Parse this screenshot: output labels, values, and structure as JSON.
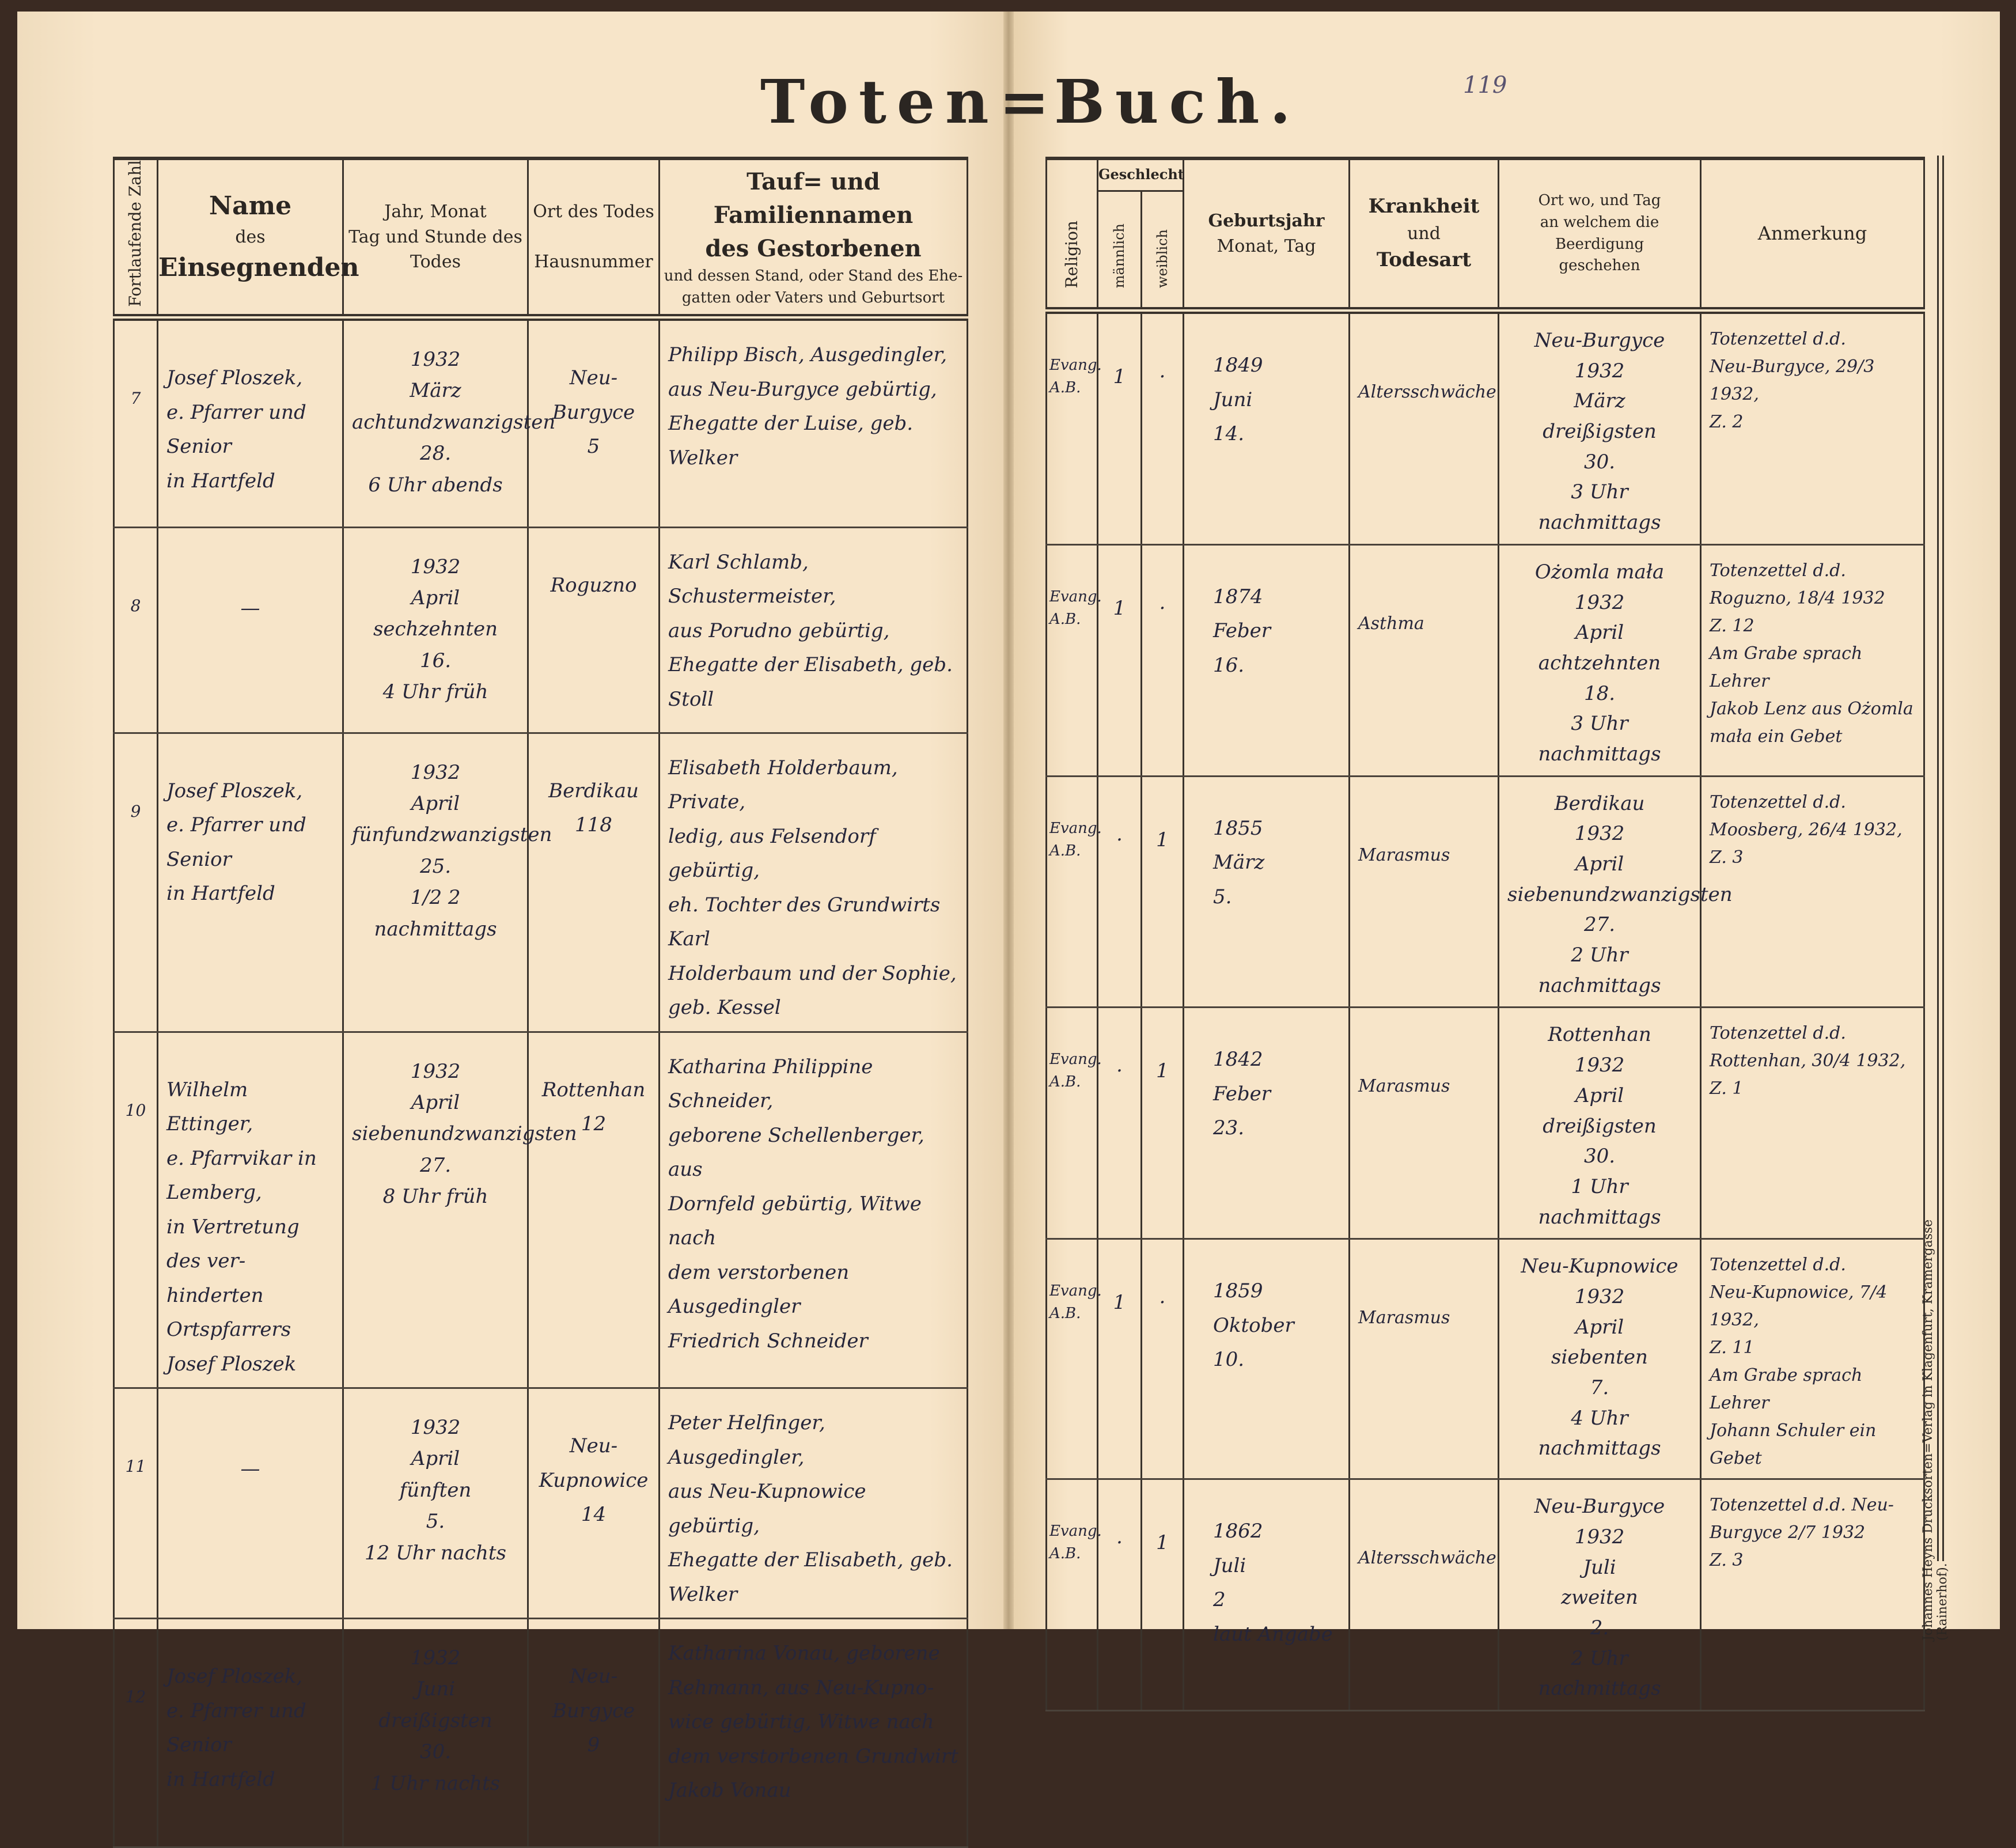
{
  "title_left": "Toten=",
  "title_right": "Buch.",
  "page_number": "119",
  "printer_imprint": "Johannes Heyns Drucksorten=Verlag in Klagenfurt, Kramergasse (Rainerhof).",
  "left_headers": {
    "nr": "Fortlaufende Zahl",
    "officiant": [
      "Name",
      "des",
      "Einsegnenden"
    ],
    "date": [
      "Jahr, Monat",
      "Tag und Stunde des",
      "Todes"
    ],
    "place": [
      "Ort des Todes",
      "Hausnummer"
    ],
    "deceased": [
      "Tauf= und Familiennamen",
      "des Gestorbenen",
      "und dessen Stand, oder Stand des Ehe-",
      "gatten oder Vaters und Geburtsort"
    ]
  },
  "right_headers": {
    "religion": "Religion",
    "sex": "Geschlecht",
    "male": "männlich",
    "female": "weiblich",
    "birth": [
      "Geburtsjahr",
      "Monat, Tag"
    ],
    "disease": [
      "Krankheit",
      "und",
      "Todesart"
    ],
    "burial": [
      "Ort wo, und Tag",
      "an welchem die Beerdigung",
      "geschehen"
    ],
    "remark": "Anmerkung"
  },
  "entries": [
    {
      "nr": "7",
      "officiant": [
        "Josef Ploszek,",
        "e. Pfarrer und Senior",
        "in Hartfeld"
      ],
      "date": [
        "1932",
        "März",
        "achtundzwanzigsten",
        "28.",
        "6 Uhr abends"
      ],
      "place": [
        "Neu-",
        "Burgyce",
        "5"
      ],
      "deceased": [
        "Philipp Bisch, Ausgedingler,",
        "aus Neu-Burgyce gebürtig,",
        "Ehegatte der Luise, geb. Welker"
      ],
      "religion": [
        "Evang.",
        "A.B."
      ],
      "male": "1",
      "female": "·",
      "birth": [
        "1849",
        "Juni",
        "14."
      ],
      "disease": [
        "Altersschwäche"
      ],
      "burial": [
        "Neu-Burgyce",
        "1932",
        "März",
        "dreißigsten",
        "30.",
        "3 Uhr nachmittags"
      ],
      "remark": [
        "Totenzettel d.d.",
        "Neu-Burgyce, 29/3 1932,",
        "Z. 2"
      ]
    },
    {
      "nr": "8",
      "officiant": [
        "—"
      ],
      "date": [
        "1932",
        "April",
        "sechzehnten",
        "16.",
        "4 Uhr früh"
      ],
      "place": [
        "Roguzno"
      ],
      "deceased": [
        "Karl Schlamb, Schustermeister,",
        "aus Porudno gebürtig,",
        "Ehegatte der Elisabeth, geb. Stoll"
      ],
      "religion": [
        "Evang.",
        "A.B."
      ],
      "male": "1",
      "female": "·",
      "birth": [
        "1874",
        "Feber",
        "16."
      ],
      "disease": [
        "Asthma"
      ],
      "burial": [
        "Ożomla mała",
        "1932",
        "April",
        "achtzehnten",
        "18.",
        "3 Uhr nachmittags"
      ],
      "remark": [
        "Totenzettel d.d.",
        "Roguzno, 18/4 1932",
        "Z. 12",
        "Am Grabe sprach Lehrer",
        "Jakob Lenz aus Ożomla",
        "mała ein Gebet"
      ]
    },
    {
      "nr": "9",
      "officiant": [
        "Josef Ploszek,",
        "e. Pfarrer und Senior",
        "in Hartfeld"
      ],
      "date": [
        "1932",
        "April",
        "fünfundzwanzigsten",
        "25.",
        "1/2 2 nachmittags"
      ],
      "place": [
        "Berdikau",
        "118"
      ],
      "deceased": [
        "Elisabeth Holderbaum, Private,",
        "ledig, aus Felsendorf gebürtig,",
        "eh. Tochter des Grundwirts Karl",
        "Holderbaum und der Sophie,",
        "geb. Kessel"
      ],
      "religion": [
        "Evang.",
        "A.B."
      ],
      "male": "·",
      "female": "1",
      "birth": [
        "1855",
        "März",
        "5."
      ],
      "disease": [
        "Marasmus"
      ],
      "burial": [
        "Berdikau",
        "1932",
        "April",
        "siebenundzwanzigsten",
        "27.",
        "2 Uhr nachmittags"
      ],
      "remark": [
        "Totenzettel d.d.",
        "Moosberg, 26/4 1932,",
        "Z. 3"
      ]
    },
    {
      "nr": "10",
      "officiant": [
        "Wilhelm Ettinger,",
        "e. Pfarrvikar in Lemberg,",
        "in Vertretung des ver-",
        "hinderten Ortspfarrers",
        "Josef Ploszek"
      ],
      "date": [
        "1932",
        "April",
        "siebenundzwanzigsten",
        "27.",
        "8 Uhr früh"
      ],
      "place": [
        "Rottenhan",
        "12"
      ],
      "deceased": [
        "Katharina Philippine Schneider,",
        "geborene Schellenberger, aus",
        "Dornfeld gebürtig, Witwe nach",
        "dem verstorbenen Ausgedingler",
        "Friedrich Schneider"
      ],
      "religion": [
        "Evang.",
        "A.B."
      ],
      "male": "·",
      "female": "1",
      "birth": [
        "1842",
        "Feber",
        "23."
      ],
      "disease": [
        "Marasmus"
      ],
      "burial": [
        "Rottenhan",
        "1932",
        "April",
        "dreißigsten",
        "30.",
        "1 Uhr nachmittags"
      ],
      "remark": [
        "Totenzettel d.d.",
        "Rottenhan, 30/4 1932,",
        "Z. 1"
      ]
    },
    {
      "nr": "11",
      "officiant": [
        "—"
      ],
      "date": [
        "1932",
        "April",
        "fünften",
        "5.",
        "12 Uhr nachts"
      ],
      "place": [
        "Neu-",
        "Kupnowice",
        "14"
      ],
      "deceased": [
        "Peter Helfinger, Ausgedingler,",
        "aus Neu-Kupnowice gebürtig,",
        "Ehegatte der Elisabeth, geb.",
        "Welker"
      ],
      "religion": [
        "Evang.",
        "A.B."
      ],
      "male": "1",
      "female": "·",
      "birth": [
        "1859",
        "Oktober",
        "10."
      ],
      "disease": [
        "Marasmus"
      ],
      "burial": [
        "Neu-Kupnowice",
        "1932",
        "April",
        "siebenten",
        "7.",
        "4 Uhr nachmittags"
      ],
      "remark": [
        "Totenzettel d.d.",
        "Neu-Kupnowice, 7/4 1932,",
        "Z. 11",
        "Am Grabe sprach Lehrer",
        "Johann Schuler ein",
        "Gebet"
      ]
    },
    {
      "nr": "12",
      "officiant": [
        "Josef Ploszek,",
        "e. Pfarrer und Senior",
        "in Hartfeld"
      ],
      "date": [
        "1932",
        "Juni",
        "dreißigsten",
        "30.",
        "1 Uhr nachts"
      ],
      "place": [
        "Neu-",
        "Burgyce",
        "9"
      ],
      "deceased": [
        "Katharina Vonau, geborene",
        "Rehmann, aus Neu-Kupno-",
        "wice gebürtig, Witwe nach",
        "dem verstorbenen Grundwirt",
        "Jakob Vonau"
      ],
      "religion": [
        "Evang.",
        "A.B."
      ],
      "male": "·",
      "female": "1",
      "birth": [
        "1862",
        "Juli",
        "2",
        "laut Angabe"
      ],
      "disease": [
        "Altersschwäche"
      ],
      "burial": [
        "Neu-Burgyce",
        "1932",
        "Juli",
        "zweiten",
        "2.",
        "2 Uhr nachmittags"
      ],
      "remark": [
        "Totenzettel d.d. Neu-",
        "Burgyce 2/7 1932",
        "Z. 3"
      ]
    }
  ]
}
